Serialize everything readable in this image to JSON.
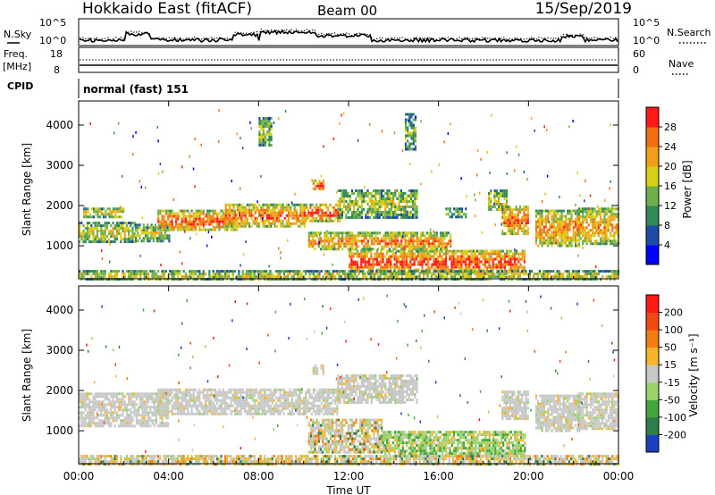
{
  "header": {
    "station": "Hokkaido East (fitACF)",
    "beam": "Beam 00",
    "date": "15/Sep/2019"
  },
  "noise_panel": {
    "left_label": "N.Sky",
    "right_label": "N.Search",
    "left_ticks": [
      "10^5",
      "10^0"
    ],
    "right_ticks": [
      "10^5",
      "10^0"
    ]
  },
  "freq_panel": {
    "left_label_top": "Freq.",
    "left_label_bottom": "[MHz]",
    "left_ticks": [
      "18",
      "8"
    ],
    "right_ticks": [
      "60",
      "0"
    ],
    "right_label": "Nave"
  },
  "cpid_panel": {
    "label": "CPID",
    "text": "normal (fast) 151"
  },
  "chart_data": [
    {
      "type": "heatmap",
      "panel": "power",
      "ylabel": "Slant Range [km]",
      "ylim": [
        180,
        4600
      ],
      "yticks": [
        "1000",
        "2000",
        "3000",
        "4000"
      ],
      "xlim": [
        0,
        24
      ],
      "colorbar": {
        "label": "Power [dB]",
        "ticks": [
          "4",
          "8",
          "12",
          "16",
          "20",
          "24",
          "28"
        ],
        "colors": [
          "#0000ff",
          "#1e4ba8",
          "#2e8b57",
          "#6fae4a",
          "#d6cf14",
          "#f0a018",
          "#f26f12",
          "#ff1a1a"
        ]
      },
      "regions": [
        {
          "t0": 0.0,
          "t1": 2.5,
          "r0": 1100,
          "r1": 1600,
          "level": 0.6
        },
        {
          "t0": 0.2,
          "t1": 2.0,
          "r0": 1750,
          "r1": 1950,
          "level": 0.7
        },
        {
          "t0": 2.5,
          "t1": 4.0,
          "r0": 1150,
          "r1": 1550,
          "level": 0.55
        },
        {
          "t0": 3.5,
          "t1": 7.0,
          "r0": 1400,
          "r1": 1900,
          "level": 0.9
        },
        {
          "t0": 6.5,
          "t1": 10.0,
          "r0": 1500,
          "r1": 2050,
          "level": 0.85
        },
        {
          "t0": 8.0,
          "t1": 8.6,
          "r0": 3500,
          "r1": 4200,
          "level": 0.5
        },
        {
          "t0": 10.0,
          "t1": 11.6,
          "r0": 1650,
          "r1": 2050,
          "level": 0.95
        },
        {
          "t0": 10.4,
          "t1": 10.9,
          "r0": 2400,
          "r1": 2650,
          "level": 0.9
        },
        {
          "t0": 11.5,
          "t1": 15.0,
          "r0": 1700,
          "r1": 2400,
          "level": 0.55
        },
        {
          "t0": 14.5,
          "t1": 15.0,
          "r0": 3400,
          "r1": 4300,
          "level": 0.45
        },
        {
          "t0": 12.0,
          "t1": 19.8,
          "r0": 350,
          "r1": 900,
          "level": 0.95
        },
        {
          "t0": 10.2,
          "t1": 16.5,
          "r0": 900,
          "r1": 1350,
          "level": 0.8
        },
        {
          "t0": 16.3,
          "t1": 17.2,
          "r0": 1750,
          "r1": 1950,
          "level": 0.5
        },
        {
          "t0": 18.2,
          "t1": 19.0,
          "r0": 1900,
          "r1": 2400,
          "level": 0.6
        },
        {
          "t0": 18.8,
          "t1": 20.0,
          "r0": 1300,
          "r1": 2000,
          "level": 0.85
        },
        {
          "t0": 20.3,
          "t1": 22.3,
          "r0": 1000,
          "r1": 1900,
          "level": 0.8
        },
        {
          "t0": 22.2,
          "t1": 24.0,
          "r0": 1050,
          "r1": 1950,
          "level": 0.75
        },
        {
          "t0": 0.0,
          "t1": 24.0,
          "r0": 180,
          "r1": 400,
          "level": 0.6
        }
      ]
    },
    {
      "type": "heatmap",
      "panel": "velocity",
      "ylabel": "Slant Range [km]",
      "ylim": [
        180,
        4600
      ],
      "yticks": [
        "1000",
        "2000",
        "3000",
        "4000"
      ],
      "xlabel": "Time UT",
      "xticks": [
        "00:00",
        "04:00",
        "08:00",
        "12:00",
        "16:00",
        "20:00",
        "00:00"
      ],
      "xlim": [
        0,
        24
      ],
      "colorbar": {
        "label": "Velocity [m s⁻¹]",
        "ticks": [
          "200",
          "100",
          "50",
          "15",
          "-15",
          "-50",
          "-100",
          "-200"
        ],
        "colors": [
          "#1b3fbf",
          "#2f7d48",
          "#44a63a",
          "#9ad26a",
          "#c8c8c8",
          "#f7b62a",
          "#f47d12",
          "#f04a12",
          "#ff1a1a"
        ]
      },
      "regions": [
        {
          "t0": 0.0,
          "t1": 4.0,
          "r0": 1100,
          "r1": 1950,
          "cls": "low"
        },
        {
          "t0": 3.5,
          "t1": 11.5,
          "r0": 1400,
          "r1": 2050,
          "cls": "low"
        },
        {
          "t0": 10.4,
          "t1": 10.9,
          "r0": 2400,
          "r1": 2650,
          "cls": "low"
        },
        {
          "t0": 11.5,
          "t1": 15.0,
          "r0": 1700,
          "r1": 2400,
          "cls": "low"
        },
        {
          "t0": 10.2,
          "t1": 13.5,
          "r0": 500,
          "r1": 1300,
          "cls": "mixed"
        },
        {
          "t0": 13.5,
          "t1": 19.8,
          "r0": 350,
          "r1": 1000,
          "cls": "green"
        },
        {
          "t0": 18.8,
          "t1": 20.0,
          "r0": 1300,
          "r1": 2000,
          "cls": "low"
        },
        {
          "t0": 20.3,
          "t1": 22.3,
          "r0": 1000,
          "r1": 1900,
          "cls": "low"
        },
        {
          "t0": 22.2,
          "t1": 24.0,
          "r0": 1050,
          "r1": 1950,
          "cls": "low"
        },
        {
          "t0": 0.0,
          "t1": 24.0,
          "r0": 180,
          "r1": 400,
          "cls": "mixed"
        }
      ]
    }
  ]
}
